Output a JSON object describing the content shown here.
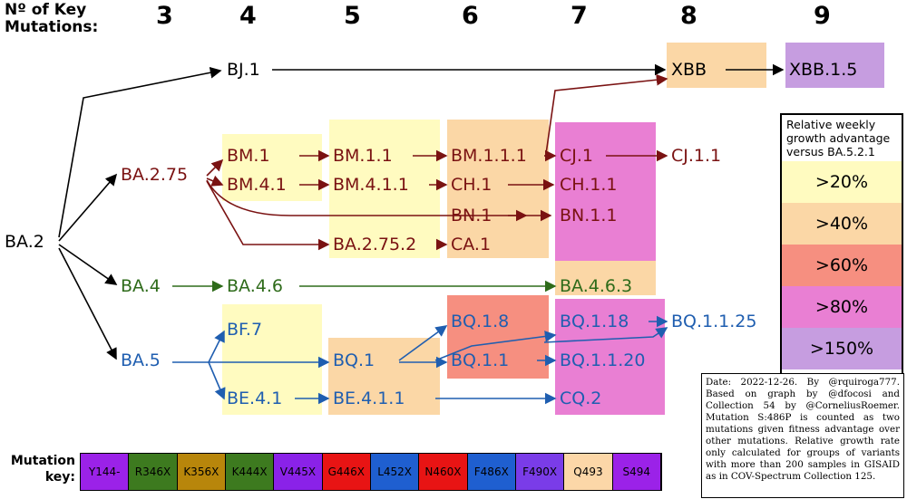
{
  "header": {
    "label": "Nº of Key Mutations:",
    "columns": [
      "3",
      "4",
      "5",
      "6",
      "7",
      "8",
      "9"
    ]
  },
  "nodes": [
    {
      "label": "BA.2",
      "color": "#000000"
    },
    {
      "label": "BJ.1",
      "color": "#000000"
    },
    {
      "label": "XBB",
      "color": "#000000"
    },
    {
      "label": "XBB.1.5",
      "color": "#000000"
    },
    {
      "label": "BA.2.75",
      "color": "#7a1212"
    },
    {
      "label": "BM.1",
      "color": "#7a1212"
    },
    {
      "label": "BM.4.1",
      "color": "#7a1212"
    },
    {
      "label": "BM.1.1",
      "color": "#7a1212"
    },
    {
      "label": "BM.4.1.1",
      "color": "#7a1212"
    },
    {
      "label": "BA.2.75.2",
      "color": "#7a1212"
    },
    {
      "label": "BM.1.1.1",
      "color": "#7a1212"
    },
    {
      "label": "CH.1",
      "color": "#7a1212"
    },
    {
      "label": "BN.1",
      "color": "#7a1212"
    },
    {
      "label": "CA.1",
      "color": "#7a1212"
    },
    {
      "label": "CJ.1",
      "color": "#7a1212"
    },
    {
      "label": "CH.1.1",
      "color": "#7a1212"
    },
    {
      "label": "BN.1.1",
      "color": "#7a1212"
    },
    {
      "label": "CJ.1.1",
      "color": "#7a1212"
    },
    {
      "label": "BA.4",
      "color": "#2e6b1a"
    },
    {
      "label": "BA.4.6",
      "color": "#2e6b1a"
    },
    {
      "label": "BA.4.6.3",
      "color": "#2e6b1a"
    },
    {
      "label": "BA.5",
      "color": "#1f5eb0"
    },
    {
      "label": "BF.7",
      "color": "#1f5eb0"
    },
    {
      "label": "BE.4.1",
      "color": "#1f5eb0"
    },
    {
      "label": "BQ.1",
      "color": "#1f5eb0"
    },
    {
      "label": "BE.4.1.1",
      "color": "#1f5eb0"
    },
    {
      "label": "BQ.1.8",
      "color": "#1f5eb0"
    },
    {
      "label": "BQ.1.1",
      "color": "#1f5eb0"
    },
    {
      "label": "BQ.1.18",
      "color": "#1f5eb0"
    },
    {
      "label": "BQ.1.1.20",
      "color": "#1f5eb0"
    },
    {
      "label": "CQ.2",
      "color": "#1f5eb0"
    },
    {
      "label": "BQ.1.1.25",
      "color": "#1f5eb0"
    }
  ],
  "legend": {
    "title": "Relative weekly growth advantage versus BA.5.2.1",
    "items": [
      {
        "label": ">20%",
        "color": "#fffbc0"
      },
      {
        "label": ">40%",
        "color": "#fbd7a6"
      },
      {
        "label": ">60%",
        "color": "#f68f80"
      },
      {
        "label": ">80%",
        "color": "#e97fd3"
      },
      {
        "label": ">150%",
        "color": "#c69de0"
      }
    ]
  },
  "note": "Date: 2022-12-26. By @rquiroga777. Based on graph by @dfocosi and Collection 54 by @CorneliusRoemer. Mutation S:486P is counted as two mutations given fitness advantage over other mutations. Relative growth rate only calculated for groups of variants with more than 200 samples in GISAID as in COV-Spectrum Collection 125.",
  "mutation_key": {
    "label": "Mutation key:",
    "items": [
      {
        "label": "Y144-",
        "color": "#9b22e8"
      },
      {
        "label": "R346X",
        "color": "#3d7a1f"
      },
      {
        "label": "K356X",
        "color": "#b8860b"
      },
      {
        "label": "K444X",
        "color": "#3d7a1f"
      },
      {
        "label": "V445X",
        "color": "#8a22e8"
      },
      {
        "label": "G446X",
        "color": "#e81414"
      },
      {
        "label": "L452X",
        "color": "#1f5fd0"
      },
      {
        "label": "N460X",
        "color": "#e81414"
      },
      {
        "label": "F486X",
        "color": "#1f5fd0"
      },
      {
        "label": "F490X",
        "color": "#7a3ce8"
      },
      {
        "label": "Q493",
        "color": "#fcd7a8"
      },
      {
        "label": "S494",
        "color": "#9b22e8"
      }
    ]
  }
}
